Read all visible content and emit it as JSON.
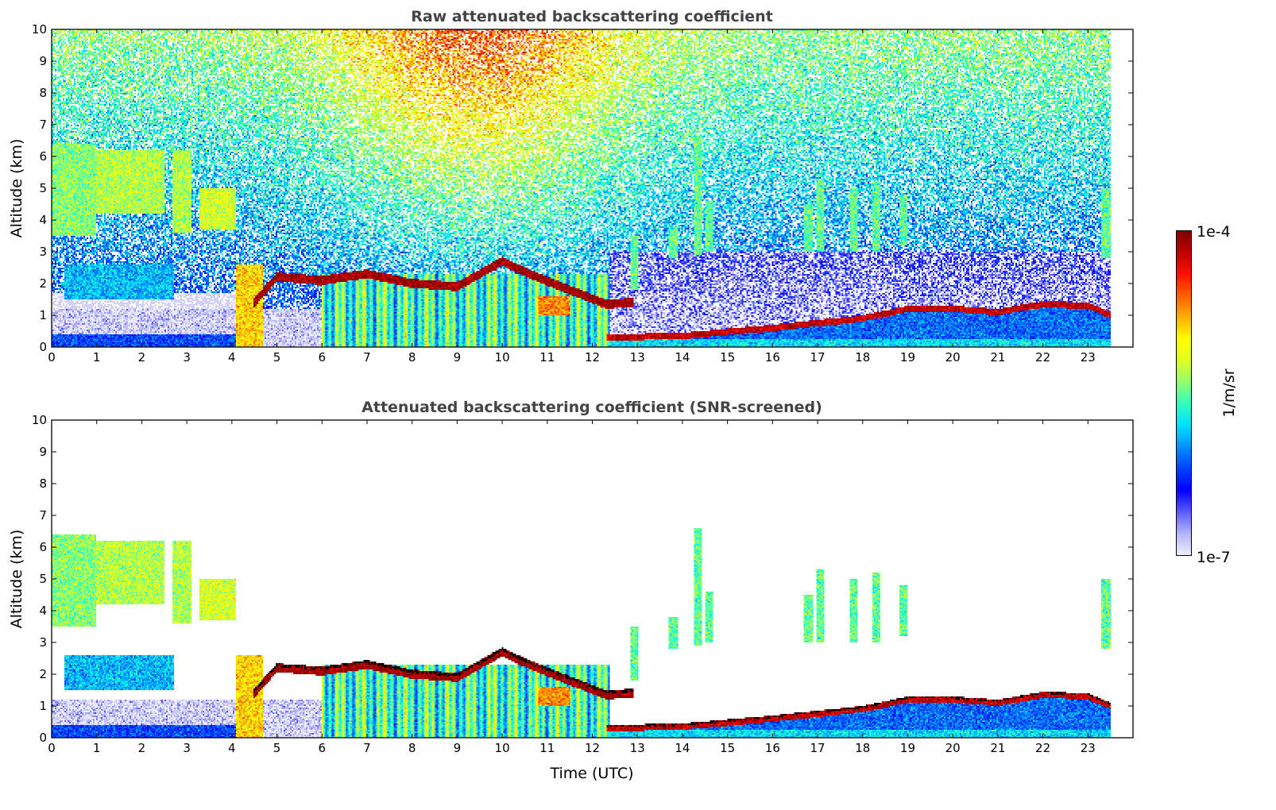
{
  "chart_data": [
    {
      "type": "heatmap",
      "title": "Raw attenuated backscattering coefficient",
      "xlabel": "",
      "ylabel": "Altitude (km)",
      "mode": "raw"
    },
    {
      "type": "heatmap",
      "title": "Attenuated backscattering coefficient (SNR-screened)",
      "xlabel": "Time (UTC)",
      "ylabel": "Altitude (km)",
      "mode": "screened"
    }
  ],
  "axes": {
    "xlim": [
      0,
      24
    ],
    "ylim": [
      0,
      10
    ],
    "data_end_hour": 23.5,
    "xticks": [
      "0",
      "1",
      "2",
      "3",
      "4",
      "5",
      "6",
      "7",
      "8",
      "9",
      "10",
      "11",
      "12",
      "13",
      "14",
      "15",
      "16",
      "17",
      "18",
      "19",
      "20",
      "21",
      "22",
      "23"
    ],
    "yticks": [
      "0",
      "1",
      "2",
      "3",
      "4",
      "5",
      "6",
      "7",
      "8",
      "9",
      "10"
    ]
  },
  "colorbar": {
    "label": "1/m/sr",
    "max_label": "1e-4",
    "min_label": "1e-7",
    "log10_range": [
      -7,
      -4
    ],
    "colors": [
      "#eeeefc",
      "#b4b4fa",
      "#5a5aff",
      "#0000ff",
      "#0040ff",
      "#0090ff",
      "#00e0ff",
      "#30ffc0",
      "#90ff70",
      "#e0ff20",
      "#ffff00",
      "#ffb000",
      "#ff6000",
      "#ff1000",
      "#c00000",
      "#800000"
    ]
  },
  "layers_log10_beta": {
    "surface_layer": {
      "t": [
        0,
        4.1
      ],
      "z": [
        0,
        0.4
      ],
      "value": -6.2
    },
    "residual_layer": {
      "t": [
        0,
        4.1
      ],
      "z": [
        0.4,
        1.2
      ],
      "value": -6.9
    },
    "residual_layer_2": {
      "t": [
        4.7,
        6.0
      ],
      "z": [
        0,
        1.2
      ],
      "value": -6.9
    },
    "low_cloud_early": {
      "t": [
        0.3,
        2.7
      ],
      "z": [
        1.5,
        2.6
      ],
      "value": -5.9
    },
    "mid_cloud_a": {
      "t": [
        0,
        1.0
      ],
      "z": [
        3.5,
        6.4
      ],
      "value": -5.4
    },
    "mid_cloud_b": {
      "t": [
        1.0,
        2.5
      ],
      "z": [
        4.2,
        6.2
      ],
      "value": -5.3
    },
    "mid_cloud_c": {
      "t": [
        2.7,
        3.1
      ],
      "z": [
        3.6,
        6.2
      ],
      "value": -5.3
    },
    "mid_cloud_d": {
      "t": [
        3.3,
        4.1
      ],
      "z": [
        3.7,
        5.0
      ],
      "value": -5.2
    },
    "aerosol_column": {
      "t": [
        4.1,
        4.7
      ],
      "z": [
        0,
        2.6
      ],
      "value": -4.9
    },
    "precip_columns": {
      "t": [
        6.0,
        12.4
      ],
      "z": [
        0,
        2.3
      ],
      "value": -5.6
    },
    "orange_patch": {
      "t": [
        10.8,
        11.5
      ],
      "z": [
        1.0,
        1.6
      ],
      "value": -4.7
    },
    "cloud_base_line": {
      "value": -4.1,
      "points": [
        [
          4.5,
          1.4
        ],
        [
          5,
          2.2
        ],
        [
          6,
          2.1
        ],
        [
          7,
          2.3
        ],
        [
          8,
          2.0
        ],
        [
          9,
          1.9
        ],
        [
          10,
          2.7
        ],
        [
          10.6,
          2.3
        ],
        [
          12.3,
          1.35
        ],
        [
          12.9,
          1.4
        ]
      ]
    },
    "boundary_layer": {
      "value_below": -6.1,
      "value_top": -4.2,
      "points": [
        [
          12.3,
          0.3
        ],
        [
          14,
          0.35
        ],
        [
          16,
          0.6
        ],
        [
          18,
          0.9
        ],
        [
          19,
          1.2
        ],
        [
          20,
          1.2
        ],
        [
          21,
          1.1
        ],
        [
          22,
          1.35
        ],
        [
          23,
          1.3
        ],
        [
          23.5,
          1.0
        ]
      ]
    },
    "fall_streaks": {
      "value": -5.5,
      "items": [
        [
          12.95,
          1.8,
          3.5
        ],
        [
          13.8,
          2.8,
          3.8
        ],
        [
          14.35,
          2.9,
          6.6
        ],
        [
          14.6,
          3.0,
          4.6
        ],
        [
          16.8,
          3.0,
          4.5
        ],
        [
          17.05,
          3.0,
          5.3
        ],
        [
          17.8,
          3.0,
          5.0
        ],
        [
          18.3,
          3.0,
          5.2
        ],
        [
          18.9,
          3.2,
          4.8
        ],
        [
          23.4,
          2.8,
          5.0
        ]
      ]
    }
  }
}
